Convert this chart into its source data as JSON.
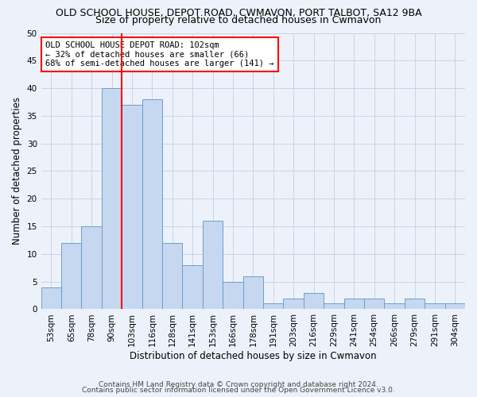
{
  "title": "OLD SCHOOL HOUSE, DEPOT ROAD, CWMAVON, PORT TALBOT, SA12 9BA",
  "subtitle": "Size of property relative to detached houses in Cwmavon",
  "xlabel": "Distribution of detached houses by size in Cwmavon",
  "ylabel": "Number of detached properties",
  "bin_labels": [
    "53sqm",
    "65sqm",
    "78sqm",
    "90sqm",
    "103sqm",
    "116sqm",
    "128sqm",
    "141sqm",
    "153sqm",
    "166sqm",
    "178sqm",
    "191sqm",
    "203sqm",
    "216sqm",
    "229sqm",
    "241sqm",
    "254sqm",
    "266sqm",
    "279sqm",
    "291sqm",
    "304sqm"
  ],
  "bar_values": [
    4,
    12,
    15,
    40,
    37,
    38,
    12,
    8,
    16,
    5,
    6,
    1,
    2,
    3,
    1,
    2,
    2,
    1,
    2,
    1,
    1
  ],
  "bar_color": "#c5d8f0",
  "bar_edgecolor": "#6aa0cc",
  "property_bin_index": 4,
  "vline_color": "red",
  "annotation_text": "OLD SCHOOL HOUSE DEPOT ROAD: 102sqm\n← 32% of detached houses are smaller (66)\n68% of semi-detached houses are larger (141) →",
  "annotation_box_color": "white",
  "annotation_box_edgecolor": "red",
  "ylim": [
    0,
    50
  ],
  "yticks": [
    0,
    5,
    10,
    15,
    20,
    25,
    30,
    35,
    40,
    45,
    50
  ],
  "grid_color": "#c8d4e8",
  "bg_color": "#edf2fa",
  "footer_line1": "Contains HM Land Registry data © Crown copyright and database right 2024.",
  "footer_line2": "Contains public sector information licensed under the Open Government Licence v3.0.",
  "title_fontsize": 9,
  "subtitle_fontsize": 9,
  "xlabel_fontsize": 8.5,
  "ylabel_fontsize": 8.5,
  "tick_fontsize": 7.5,
  "annotation_fontsize": 7.5,
  "footer_fontsize": 6.5
}
